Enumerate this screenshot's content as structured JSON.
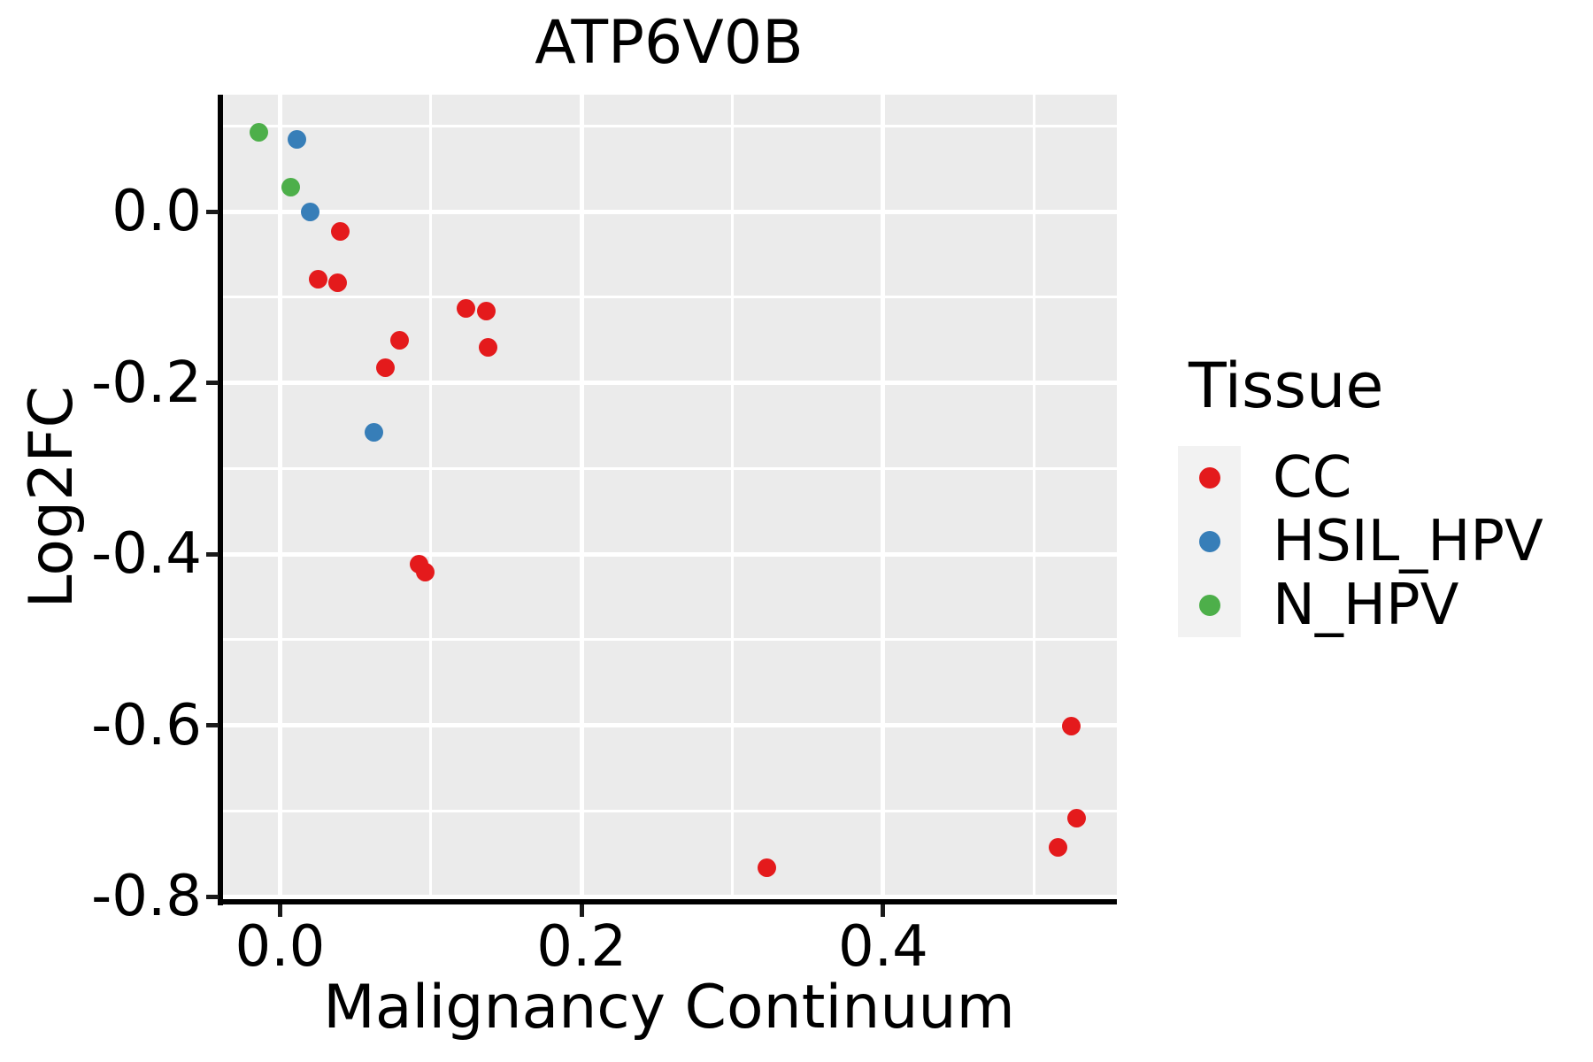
{
  "chart_data": {
    "type": "scatter",
    "title": "ATP6V0B",
    "xlabel": "Malignancy Continuum",
    "ylabel": "Log2FC",
    "xlim": [
      -0.039,
      0.555
    ],
    "ylim": [
      -0.804,
      0.1365
    ],
    "grid": true,
    "x_ticks": {
      "values": [
        0.0,
        0.2,
        0.4
      ],
      "labels": [
        "0.0",
        "0.2",
        "0.4"
      ],
      "minor": [
        0.1,
        0.3,
        0.5
      ]
    },
    "y_ticks": {
      "values": [
        0.0,
        -0.2,
        -0.4,
        -0.6,
        -0.8
      ],
      "labels": [
        "0.0",
        "-0.2",
        "-0.4",
        "-0.6",
        "-0.8"
      ],
      "minor": [
        0.1,
        -0.1,
        -0.3,
        -0.5,
        -0.7
      ]
    },
    "legend": {
      "title": "Tissue",
      "position": "right"
    },
    "series": [
      {
        "name": "CC",
        "color": "#E41A1C",
        "points": [
          [
            0.04,
            -0.023
          ],
          [
            0.025,
            -0.079
          ],
          [
            0.038,
            -0.083
          ],
          [
            0.123,
            -0.113
          ],
          [
            0.137,
            -0.116
          ],
          [
            0.079,
            -0.15
          ],
          [
            0.138,
            -0.159
          ],
          [
            0.07,
            -0.182
          ],
          [
            0.092,
            -0.412
          ],
          [
            0.096,
            -0.421
          ],
          [
            0.525,
            -0.601
          ],
          [
            0.528,
            -0.708
          ],
          [
            0.516,
            -0.742
          ],
          [
            0.323,
            -0.766
          ]
        ]
      },
      {
        "name": "HSIL_HPV",
        "color": "#377EB8",
        "points": [
          [
            0.011,
            0.084
          ],
          [
            0.02,
            0.0
          ],
          [
            0.062,
            -0.258
          ]
        ]
      },
      {
        "name": "N_HPV",
        "color": "#4DAF4A",
        "points": [
          [
            -0.014,
            0.093
          ],
          [
            0.007,
            0.029
          ]
        ]
      }
    ],
    "styles": {
      "panel_bg": "#EBEBEB",
      "grid_color": "#FFFFFF",
      "legend_key_bg": "#F2F2F2",
      "text_color": "#000000"
    }
  }
}
